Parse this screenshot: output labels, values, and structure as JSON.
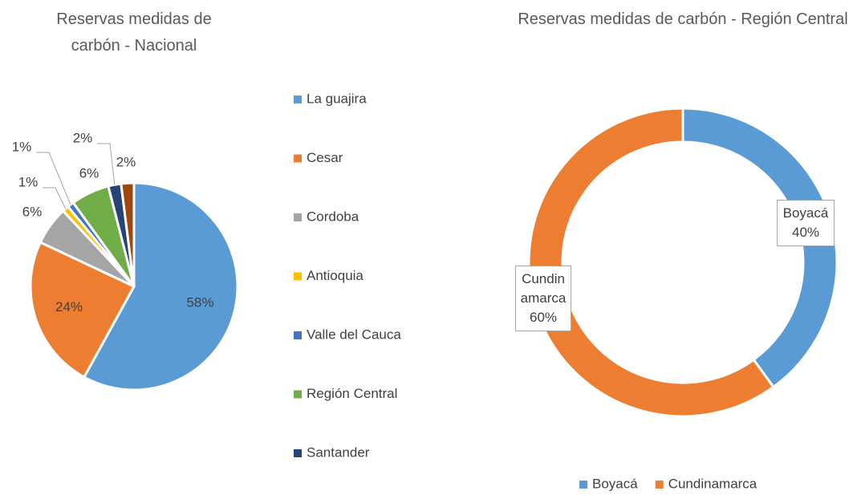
{
  "chart_data": [
    {
      "type": "pie",
      "title": "Reservas medidas de carbón - Nacional",
      "categories": [
        "La guajira",
        "Cesar",
        "Cordoba",
        "Antioquia",
        "Valle del Cauca",
        "Región Central",
        "Santander",
        null
      ],
      "values": [
        58,
        24,
        6,
        1,
        1,
        6,
        2,
        2
      ],
      "value_labels": [
        "58%",
        "24%",
        "6%",
        "1%",
        "1%",
        "6%",
        "2%",
        "2%"
      ],
      "colors": [
        "#5b9bd5",
        "#ed7d31",
        "#a5a5a5",
        "#ffc000",
        "#4472c4",
        "#70ad47",
        "#264478",
        "#9e480e"
      ],
      "legend": "right"
    },
    {
      "type": "doughnut",
      "title": "Reservas medidas de carbón - Región Central",
      "categories": [
        "Boyacá",
        "Cundinamarca"
      ],
      "values": [
        40,
        60
      ],
      "value_labels": [
        "40%",
        "60%"
      ],
      "colors": [
        "#5b9bd5",
        "#ed7d31"
      ],
      "legend": "bottom"
    }
  ]
}
